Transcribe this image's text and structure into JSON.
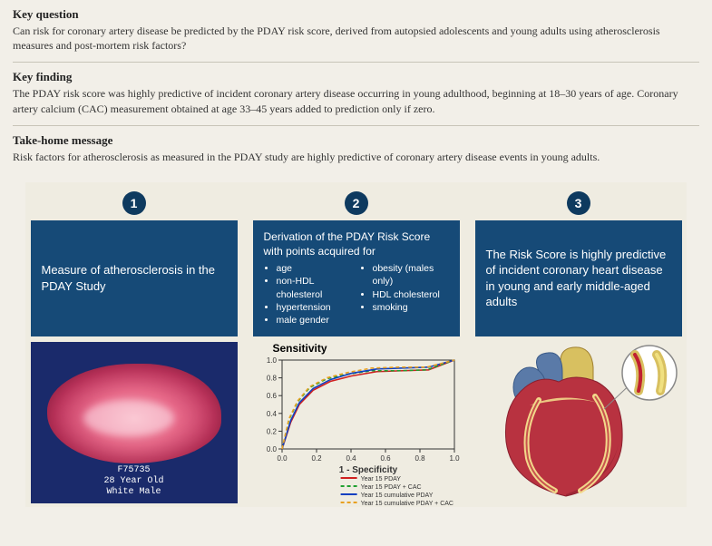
{
  "key_question": {
    "heading": "Key question",
    "text": "Can risk for coronary artery disease be predicted by the PDAY risk score, derived from autopsied adolescents and young adults using atherosclerosis measures and post-mortem risk factors?"
  },
  "key_finding": {
    "heading": "Key finding",
    "text": "The PDAY risk score was highly predictive of incident coronary artery disease occurring in young adulthood, beginning at 18–30 years of age. Coronary artery calcium (CAC) measurement obtained at age 33–45 years added to prediction only if zero."
  },
  "take_home": {
    "heading": "Take-home message",
    "text": "Risk factors for atherosclerosis as measured in the PDAY study are highly predictive of coronary artery disease events in young adults."
  },
  "panels": [
    {
      "num": "1",
      "box_text": "Measure of atherosclerosis in the PDAY Study"
    },
    {
      "num": "2",
      "box_lead": "Derivation of the PDAY Risk Score with points acquired for",
      "bullets_left": [
        "age",
        "non-HDL cholesterol",
        "hypertension",
        "male gender"
      ],
      "bullets_right": [
        "obesity (males only)",
        "HDL cholesterol",
        "smoking"
      ]
    },
    {
      "num": "3",
      "box_text": "The Risk Score is highly predictive of incident coronary heart disease in young and early middle-aged adults"
    }
  ],
  "slide": {
    "id": "F75735",
    "age": "28 Year Old",
    "race_sex": "White Male"
  },
  "roc": {
    "title": "Sensitivity",
    "xlabel": "1 - Specificity",
    "xlim": [
      0,
      1
    ],
    "ylim": [
      0,
      1
    ],
    "ticks": [
      "0.0",
      "0.2",
      "0.4",
      "0.6",
      "0.8",
      "1.0"
    ],
    "bg": "#efece1",
    "axis_color": "#333",
    "series": [
      {
        "label": "Year 15 PDAY",
        "color": "#d02020",
        "dash": "none",
        "pts": [
          [
            0,
            0
          ],
          [
            0.05,
            0.3
          ],
          [
            0.1,
            0.5
          ],
          [
            0.18,
            0.66
          ],
          [
            0.28,
            0.76
          ],
          [
            0.4,
            0.82
          ],
          [
            0.55,
            0.87
          ],
          [
            0.7,
            0.88
          ],
          [
            0.85,
            0.89
          ],
          [
            1.0,
            1.0
          ]
        ]
      },
      {
        "label": "Year 15 PDAY + CAC",
        "color": "#20a030",
        "dash": "4,3",
        "pts": [
          [
            0,
            0
          ],
          [
            0.04,
            0.33
          ],
          [
            0.09,
            0.53
          ],
          [
            0.16,
            0.69
          ],
          [
            0.26,
            0.79
          ],
          [
            0.38,
            0.84
          ],
          [
            0.52,
            0.88
          ],
          [
            0.68,
            0.88
          ],
          [
            0.84,
            0.89
          ],
          [
            1.0,
            1.0
          ]
        ]
      },
      {
        "label": "Year 15 cumulative PDAY",
        "color": "#1040c0",
        "dash": "none",
        "pts": [
          [
            0,
            0
          ],
          [
            0.05,
            0.32
          ],
          [
            0.1,
            0.52
          ],
          [
            0.18,
            0.68
          ],
          [
            0.28,
            0.78
          ],
          [
            0.4,
            0.85
          ],
          [
            0.55,
            0.9
          ],
          [
            0.7,
            0.91
          ],
          [
            0.85,
            0.92
          ],
          [
            1.0,
            1.0
          ]
        ]
      },
      {
        "label": "Year 15 cumulative PDAY + CAC",
        "color": "#e8a020",
        "dash": "4,3",
        "pts": [
          [
            0,
            0
          ],
          [
            0.04,
            0.34
          ],
          [
            0.09,
            0.54
          ],
          [
            0.16,
            0.7
          ],
          [
            0.26,
            0.8
          ],
          [
            0.38,
            0.86
          ],
          [
            0.52,
            0.91
          ],
          [
            0.68,
            0.92
          ],
          [
            0.84,
            0.92
          ],
          [
            1.0,
            1.0
          ]
        ]
      }
    ]
  },
  "heart": {
    "body_color": "#b83240",
    "shade_color": "#8a1f2e",
    "aorta_color": "#d8c060",
    "pulm_color": "#5a7aa8",
    "fat_color": "#f2d88a",
    "artery_wall": "#d8c060",
    "artery_lumen": "#c02030",
    "plaque_color": "#f0e080",
    "circle_stroke": "#888"
  }
}
